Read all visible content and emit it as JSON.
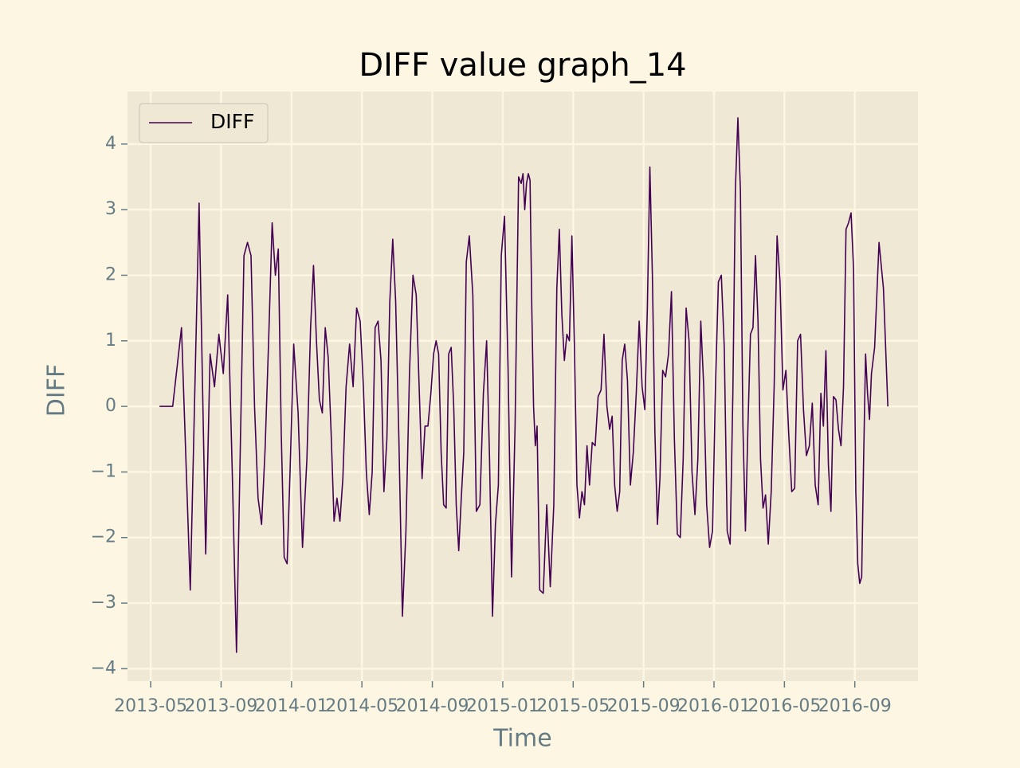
{
  "chart_data": {
    "type": "line",
    "title": "DIFF value graph_14",
    "xlabel": "Time",
    "ylabel": "DIFF",
    "x": [
      "2013-05",
      "2013-06",
      "2013-06",
      "2013-07",
      "2013-07",
      "2013-08",
      "2013-08",
      "2013-08",
      "2013-08",
      "2013-09",
      "2013-09",
      "2013-09",
      "2013-09",
      "2013-10",
      "2013-10",
      "2013-10",
      "2013-10",
      "2013-10",
      "2013-11",
      "2013-11",
      "2013-11",
      "2013-11",
      "2013-11",
      "2013-12",
      "2013-12",
      "2013-12",
      "2013-12",
      "2013-12",
      "2013-12",
      "2014-01",
      "2014-01",
      "2014-01",
      "2014-01",
      "2014-02",
      "2014-02",
      "2014-02",
      "2014-02",
      "2014-02",
      "2014-02",
      "2014-03",
      "2014-03",
      "2014-03",
      "2014-03",
      "2014-03",
      "2014-03",
      "2014-04",
      "2014-04",
      "2014-04",
      "2014-04",
      "2014-04",
      "2014-05",
      "2014-05",
      "2014-05",
      "2014-05",
      "2014-05",
      "2014-05",
      "2014-06",
      "2014-06",
      "2014-06",
      "2014-06",
      "2014-06",
      "2014-06",
      "2014-07",
      "2014-07",
      "2014-07",
      "2014-07",
      "2014-07",
      "2014-08",
      "2014-08",
      "2014-08",
      "2014-08",
      "2014-08",
      "2014-08",
      "2014-09",
      "2014-09",
      "2014-09",
      "2014-09",
      "2014-09",
      "2014-09",
      "2014-09",
      "2014-10",
      "2014-10",
      "2014-10",
      "2014-10",
      "2014-10",
      "2014-10",
      "2014-10",
      "2014-11",
      "2014-11",
      "2014-11",
      "2014-11",
      "2014-11",
      "2014-12",
      "2014-12",
      "2014-12",
      "2014-12",
      "2014-12",
      "2014-12",
      "2015-01",
      "2015-01",
      "2015-01",
      "2015-01",
      "2015-01",
      "2015-02",
      "2015-02",
      "2015-02",
      "2015-02",
      "2015-02",
      "2015-02",
      "2015-02",
      "2015-02",
      "2015-02",
      "2015-02",
      "2015-03",
      "2015-03",
      "2015-03",
      "2015-03",
      "2015-03",
      "2015-04",
      "2015-04",
      "2015-04",
      "2015-04",
      "2015-04",
      "2015-04",
      "2015-04",
      "2015-05",
      "2015-05",
      "2015-05",
      "2015-05",
      "2015-05",
      "2015-05",
      "2015-05",
      "2015-06",
      "2015-06",
      "2015-06",
      "2015-06",
      "2015-06",
      "2015-06",
      "2015-07",
      "2015-07",
      "2015-07",
      "2015-07",
      "2015-07",
      "2015-07",
      "2015-07",
      "2015-08",
      "2015-08",
      "2015-08",
      "2015-08",
      "2015-08",
      "2015-08",
      "2015-09",
      "2015-09",
      "2015-09",
      "2015-09",
      "2015-09",
      "2015-09",
      "2015-09",
      "2015-10",
      "2015-10",
      "2015-10",
      "2015-10",
      "2015-10",
      "2015-10",
      "2015-11",
      "2015-11",
      "2015-11",
      "2015-11",
      "2015-11",
      "2015-11",
      "2015-12",
      "2015-12",
      "2015-12",
      "2015-12",
      "2015-12",
      "2015-12",
      "2016-01",
      "2016-01",
      "2016-01",
      "2016-01",
      "2016-01",
      "2016-01",
      "2016-02",
      "2016-02",
      "2016-02",
      "2016-02",
      "2016-02",
      "2016-02",
      "2016-02",
      "2016-03",
      "2016-03",
      "2016-03",
      "2016-03",
      "2016-03",
      "2016-03",
      "2016-03",
      "2016-04",
      "2016-04",
      "2016-04",
      "2016-04",
      "2016-04",
      "2016-04",
      "2016-05",
      "2016-05",
      "2016-05",
      "2016-05",
      "2016-05",
      "2016-05",
      "2016-06",
      "2016-06",
      "2016-06",
      "2016-06",
      "2016-06",
      "2016-06",
      "2016-07",
      "2016-07",
      "2016-07",
      "2016-07",
      "2016-07",
      "2016-07",
      "2016-07",
      "2016-08",
      "2016-08",
      "2016-08",
      "2016-08",
      "2016-08",
      "2016-08",
      "2016-08",
      "2016-09",
      "2016-09",
      "2016-09",
      "2016-09",
      "2016-09",
      "2016-09",
      "2016-09",
      "2016-09",
      "2016-09",
      "2016-10",
      "2016-10",
      "2016-10",
      "2016-10"
    ],
    "series": [
      {
        "name": "DIFF",
        "color": "#440154",
        "values": [
          0,
          0,
          1.2,
          -2.8,
          3.1,
          -2.25,
          0.8,
          0.3,
          1.1,
          0.5,
          1.7,
          -0.9,
          -3.75,
          -0.5,
          2.3,
          2.5,
          2.3,
          0,
          -1.4,
          -1.8,
          -0.65,
          1.0,
          2.8,
          2.0,
          2.4,
          -0.4,
          -2.3,
          -2.4,
          -1.0,
          0.95,
          -0.1,
          -2.15,
          -0.8,
          1.2,
          2.15,
          1.0,
          0.1,
          -0.1,
          1.2,
          0.75,
          -0.4,
          -1.75,
          -1.4,
          -1.75,
          -1.1,
          0.3,
          0.95,
          0.3,
          1.5,
          1.3,
          0.3,
          -1.0,
          -1.65,
          -1.0,
          1.2,
          1.3,
          0.7,
          -1.3,
          -0.5,
          1.6,
          2.55,
          1.6,
          -0.5,
          -3.2,
          -1.9,
          0.5,
          2.0,
          1.7,
          0.3,
          -1.1,
          -0.3,
          -0.3,
          0.2,
          0.8,
          1.0,
          0.8,
          -0.7,
          -1.5,
          -1.55,
          0.8,
          0.9,
          0,
          -1.5,
          -2.2,
          -1.4,
          -0.7,
          2.2,
          2.6,
          1.7,
          -1.6,
          -1.5,
          0.2,
          1.0,
          -0.8,
          -3.2,
          -1.8,
          -1.2,
          2.3,
          2.9,
          0.6,
          -2.6,
          -0.3,
          3.5,
          3.4,
          3.55,
          3.0,
          3.4,
          3.55,
          3.45,
          1.5,
          0,
          -0.6,
          -0.3,
          -2.8,
          -2.85,
          -1.5,
          -2.75,
          -1.5,
          1.8,
          2.7,
          1.4,
          0.7,
          1.1,
          1.0,
          2.6,
          0.9,
          -1.2,
          -1.7,
          -1.3,
          -1.5,
          -0.6,
          -1.2,
          -0.55,
          -0.6,
          0.15,
          0.25,
          1.1,
          0,
          -0.35,
          -0.15,
          -1.2,
          -1.6,
          -1.3,
          0.7,
          0.95,
          0.4,
          -1.2,
          -0.7,
          0.2,
          1.3,
          0.3,
          -0.05,
          1.5,
          3.65,
          2.0,
          -0.4,
          -1.8,
          -1.1,
          0.55,
          0.45,
          0.8,
          1.75,
          -0.5,
          -1.95,
          -2.0,
          -0.8,
          1.5,
          1.0,
          -1.0,
          -1.65,
          -0.8,
          1.3,
          0.3,
          -1.5,
          -2.15,
          -1.9,
          0.3,
          1.9,
          2.0,
          0.9,
          -1.9,
          -2.1,
          0.2,
          3.3,
          4.4,
          3.3,
          -0.3,
          -1.9,
          -0.3,
          1.1,
          1.2,
          2.3,
          1.3,
          -0.8,
          -1.55,
          -1.35,
          -2.1,
          -1.3,
          0.3,
          2.6,
          1.9,
          0.25,
          0.55,
          -0.45,
          -1.3,
          -1.25,
          1.0,
          1.1,
          -0.05,
          -0.75,
          -0.6,
          0.05,
          -1.2,
          -1.5,
          0.2,
          -0.3,
          0.85,
          -0.9,
          -1.6,
          0.15,
          0.1,
          -0.35,
          -0.6,
          0.3,
          2.7,
          2.8,
          2.95,
          2.1,
          -1.3,
          -2.4,
          -2.7,
          -2.6,
          -0.8,
          0.8,
          0.2,
          -0.2,
          0.5,
          0.9,
          2.5,
          1.8,
          0
        ]
      }
    ],
    "xlim": [
      "2013-04",
      "2016-12"
    ],
    "xticks": [
      "2013-05",
      "2013-09",
      "2014-01",
      "2014-05",
      "2014-09",
      "2015-01",
      "2015-05",
      "2015-09",
      "2016-01",
      "2016-05",
      "2016-09"
    ],
    "ylim": [
      -4.19,
      4.8
    ],
    "yticks": [
      {
        "value": -4,
        "label": "−4"
      },
      {
        "value": -3,
        "label": "−3"
      },
      {
        "value": -2,
        "label": "−2"
      },
      {
        "value": -1,
        "label": "−1"
      },
      0,
      1,
      2,
      3,
      4
    ],
    "grid": true,
    "legend": "upper left"
  }
}
